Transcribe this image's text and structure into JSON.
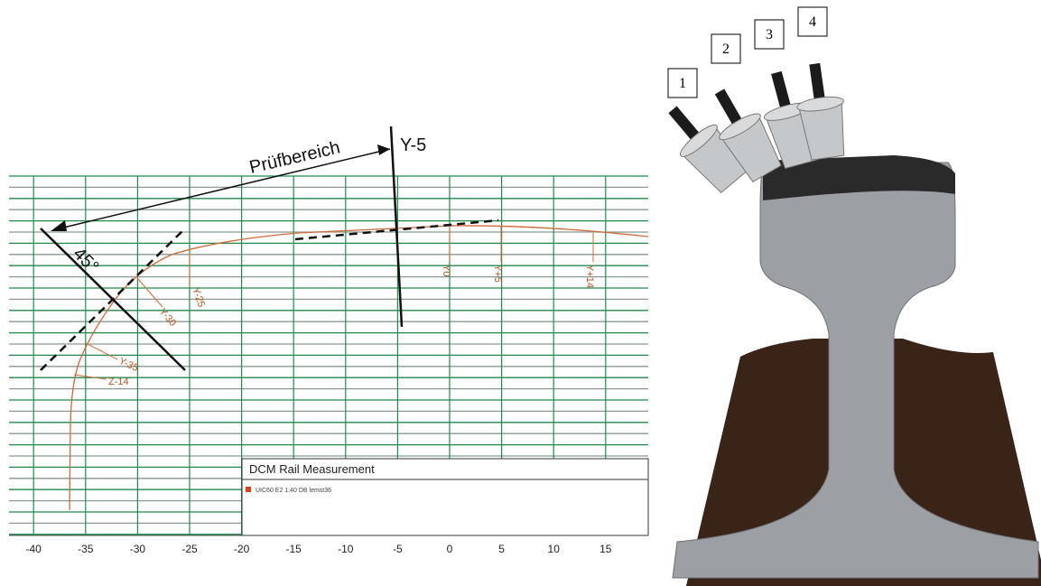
{
  "plot": {
    "xticks": [
      -40,
      -35,
      -30,
      -25,
      -20,
      -15,
      -10,
      -5,
      0,
      5,
      10,
      15
    ],
    "profile_labels": [
      "Y0",
      "Y+5",
      "Y+14",
      "Y-25",
      "Y-30",
      "Y-35",
      "Z-14"
    ],
    "legend_title": "DCM Rail Measurement",
    "legend_entry": "UIC60 E2 1:40 DB lemst36"
  },
  "annotations": {
    "range": "Prüfbereich",
    "line": "Y-5",
    "angle": "45°"
  },
  "photo": {
    "probe_labels": [
      "1",
      "2",
      "3",
      "4"
    ]
  }
}
